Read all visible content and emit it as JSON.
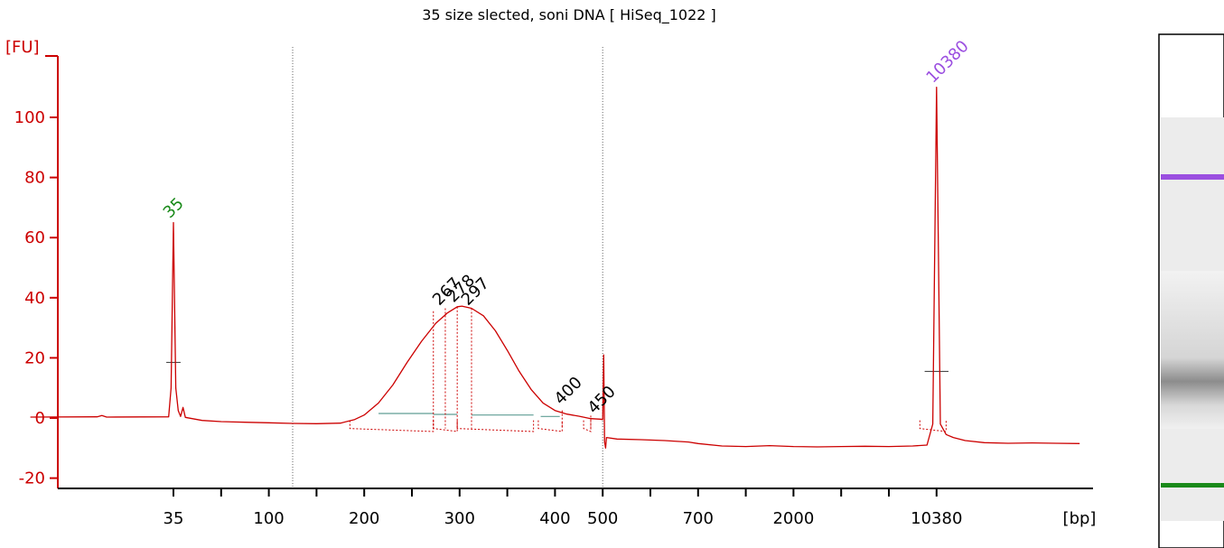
{
  "chart_data": {
    "type": "line",
    "title": "35 size slected, soni DNA  [ HiSeq_1022 ]",
    "ylabel": "[FU]",
    "xlabel": "[bp]",
    "ylim": [
      -22,
      120
    ],
    "yticks": [
      -20,
      0,
      20,
      40,
      60,
      80,
      100
    ],
    "xticks": [
      {
        "label": "35",
        "pos": 0
      },
      {
        "label": "",
        "pos": 1
      },
      {
        "label": "100",
        "pos": 2
      },
      {
        "label": "",
        "pos": 3
      },
      {
        "label": "200",
        "pos": 4
      },
      {
        "label": "",
        "pos": 5
      },
      {
        "label": "300",
        "pos": 6
      },
      {
        "label": "",
        "pos": 7
      },
      {
        "label": "400",
        "pos": 8
      },
      {
        "label": "500",
        "pos": 9
      },
      {
        "label": "",
        "pos": 10
      },
      {
        "label": "700",
        "pos": 11
      },
      {
        "label": "",
        "pos": 12
      },
      {
        "label": "2000",
        "pos": 13
      },
      {
        "label": "",
        "pos": 14
      },
      {
        "label": "",
        "pos": 15
      },
      {
        "label": "10380",
        "pos": 16
      }
    ],
    "series": [
      {
        "points": [
          [
            -3.0,
            0.3
          ],
          [
            -1.6,
            0.4
          ],
          [
            -1.5,
            0.8
          ],
          [
            -1.4,
            0.3
          ],
          [
            -0.1,
            0.4
          ],
          [
            -0.05,
            10
          ],
          [
            0.0,
            65
          ],
          [
            0.05,
            10
          ],
          [
            0.1,
            2.5
          ],
          [
            0.15,
            0.5
          ],
          [
            0.2,
            3.5
          ],
          [
            0.25,
            0.2
          ],
          [
            0.6,
            -0.8
          ],
          [
            1.0,
            -1.2
          ],
          [
            1.5,
            -1.4
          ],
          [
            2.0,
            -1.6
          ],
          [
            2.5,
            -1.8
          ],
          [
            3.0,
            -1.9
          ],
          [
            3.5,
            -1.7
          ],
          [
            3.8,
            -0.5
          ],
          [
            4.0,
            1.0
          ],
          [
            4.3,
            5.0
          ],
          [
            4.6,
            11.0
          ],
          [
            4.9,
            18.5
          ],
          [
            5.2,
            25.5
          ],
          [
            5.5,
            31.5
          ],
          [
            5.75,
            35.0
          ],
          [
            5.95,
            37.0
          ],
          [
            6.05,
            37.2
          ],
          [
            6.25,
            36.5
          ],
          [
            6.5,
            34.0
          ],
          [
            6.75,
            29.0
          ],
          [
            7.0,
            22.5
          ],
          [
            7.25,
            15.5
          ],
          [
            7.5,
            9.5
          ],
          [
            7.75,
            5.0
          ],
          [
            8.0,
            2.5
          ],
          [
            8.25,
            1.3
          ],
          [
            8.5,
            0.6
          ],
          [
            8.75,
            -0.2
          ],
          [
            8.95,
            -0.4
          ],
          [
            9.0,
            -0.5
          ],
          [
            9.02,
            21.0
          ],
          [
            9.04,
            -8.0
          ],
          [
            9.06,
            -10.0
          ],
          [
            9.08,
            -6.5
          ],
          [
            9.3,
            -7.0
          ],
          [
            9.8,
            -7.2
          ],
          [
            10.3,
            -7.5
          ],
          [
            10.8,
            -8.0
          ],
          [
            11.0,
            -8.5
          ],
          [
            11.5,
            -9.3
          ],
          [
            12.0,
            -9.5
          ],
          [
            12.5,
            -9.2
          ],
          [
            13.0,
            -9.5
          ],
          [
            13.5,
            -9.6
          ],
          [
            14.0,
            -9.5
          ],
          [
            14.5,
            -9.4
          ],
          [
            15.0,
            -9.5
          ],
          [
            15.5,
            -9.3
          ],
          [
            15.8,
            -9.0
          ],
          [
            15.92,
            -2.0
          ],
          [
            16.0,
            110.0
          ],
          [
            16.08,
            -2.0
          ],
          [
            16.2,
            -5.5
          ],
          [
            16.35,
            -6.5
          ],
          [
            16.6,
            -7.5
          ],
          [
            17.0,
            -8.2
          ],
          [
            17.5,
            -8.4
          ],
          [
            18.0,
            -8.3
          ],
          [
            18.5,
            -8.4
          ],
          [
            19.0,
            -8.5
          ]
        ]
      }
    ],
    "peaks": [
      {
        "label": "35",
        "pos": 0.0,
        "fu": 65,
        "color": "#1a8a1a"
      },
      {
        "label": "267",
        "pos": 5.65,
        "fu": 36,
        "color": "#000000"
      },
      {
        "label": "278",
        "pos": 5.95,
        "fu": 37,
        "color": "#000000"
      },
      {
        "label": "297",
        "pos": 6.25,
        "fu": 36,
        "color": "#000000"
      },
      {
        "label": "400",
        "pos": 8.2,
        "fu": 3,
        "color": "#000000"
      },
      {
        "label": "450",
        "pos": 8.9,
        "fu": 0,
        "color": "#000000"
      },
      {
        "label": "10380",
        "pos": 16.0,
        "fu": 110,
        "color": "#9b4fe0"
      }
    ],
    "colors": {
      "axis": "#cc0000",
      "trace": "#cc0000",
      "baseline": "#5f9e95",
      "lower_marker": "#1a8a1a",
      "upper_marker": "#9b4fe0"
    }
  }
}
